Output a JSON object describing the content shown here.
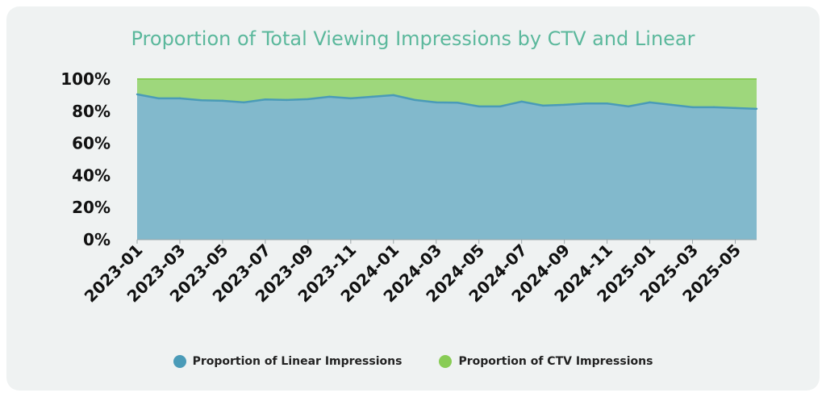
{
  "chart_data": {
    "type": "area",
    "stacked": true,
    "title": "Proportion of Total Viewing Impressions by CTV and Linear",
    "xlabel": "",
    "ylabel": "",
    "ylim": [
      0,
      100
    ],
    "y_ticks": [
      "0%",
      "20%",
      "40%",
      "60%",
      "80%",
      "100%"
    ],
    "x": [
      "2023-01",
      "2023-02",
      "2023-03",
      "2023-04",
      "2023-05",
      "2023-06",
      "2023-07",
      "2023-08",
      "2023-09",
      "2023-10",
      "2023-11",
      "2023-12",
      "2024-01",
      "2024-02",
      "2024-03",
      "2024-04",
      "2024-05",
      "2024-06",
      "2024-07",
      "2024-08",
      "2024-09",
      "2024-10",
      "2024-11",
      "2024-12",
      "2025-01",
      "2025-02",
      "2025-03",
      "2025-04",
      "2025-05",
      "2025-06"
    ],
    "x_tick_labels": [
      "2023-01",
      "2023-03",
      "2023-05",
      "2023-07",
      "2023-09",
      "2023-11",
      "2024-01",
      "2024-03",
      "2024-05",
      "2024-07",
      "2024-09",
      "2024-11",
      "2025-01",
      "2025-03",
      "2025-05"
    ],
    "series": [
      {
        "name": "Proportion of Linear Impressions",
        "color": "#4a9bb8",
        "fill": "#82b9cc",
        "values": [
          90.5,
          88.0,
          88.0,
          86.8,
          86.5,
          85.5,
          87.3,
          87.0,
          87.5,
          89.0,
          88.0,
          89.0,
          90.0,
          87.0,
          85.5,
          85.3,
          83.0,
          83.0,
          86.0,
          83.5,
          84.0,
          84.8,
          84.8,
          83.0,
          85.5,
          84.0,
          82.5,
          82.5,
          82.0,
          81.5
        ]
      },
      {
        "name": "Proportion of CTV Impressions",
        "color": "#88cc55",
        "fill": "#9ed77c",
        "values": [
          9.5,
          12.0,
          12.0,
          13.2,
          13.5,
          14.5,
          12.7,
          13.0,
          12.5,
          11.0,
          12.0,
          11.0,
          10.0,
          13.0,
          14.5,
          14.7,
          17.0,
          17.0,
          14.0,
          16.5,
          16.0,
          15.2,
          15.2,
          17.0,
          14.5,
          16.0,
          17.5,
          17.5,
          18.0,
          18.5
        ]
      }
    ],
    "grid": true,
    "legend_position": "bottom"
  }
}
